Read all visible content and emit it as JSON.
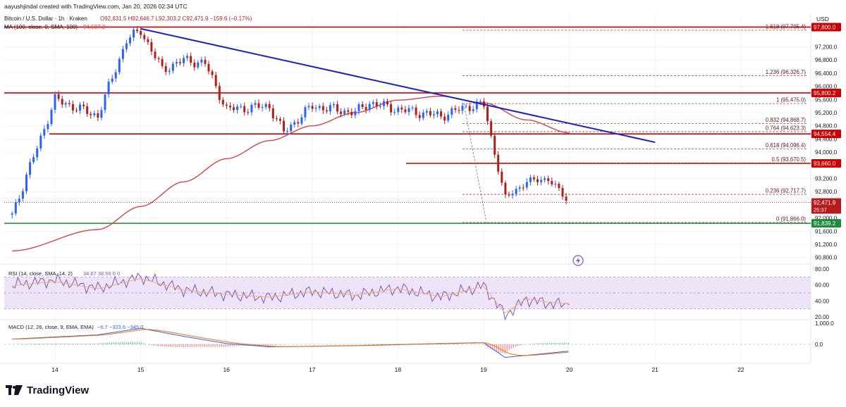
{
  "header": {
    "credit": "aayushjindal created with TradingView.com, Jan 20, 2026 02:34 UTC",
    "symbol_line": "Bitcoin / U.S. Dollar · 1h · Kraken",
    "ohlc": "O92,631.5  H92,646.7  L92,303.2  C92,471.9  −159.6 (−0.17%)",
    "ma_label": "MA (100, close, 0, SMA, 100)",
    "ma_value": "94,587.2",
    "currency": "USD"
  },
  "colors": {
    "up": "#2962ff",
    "down": "#b71c1c",
    "resistance": "#cc0000",
    "support": "#1b8a3a",
    "trendline": "#1a1fc7",
    "ma": "#d64545",
    "fib": "#8c1b1b",
    "rsi_band": "#ede4f7",
    "rsi_line": "#7e57c2",
    "macd": "#2962ff",
    "signal": "#ff6d00"
  },
  "chart_data": [
    {
      "type": "line",
      "subtype": "candlestick",
      "title": "Bitcoin / U.S. Dollar · 1h · Kraken",
      "ylabel": "USD",
      "ylim": [
        90600,
        98000
      ],
      "x_ticks": [
        "14",
        "15",
        "16",
        "17",
        "18",
        "19",
        "20",
        "21",
        "22"
      ],
      "y_ticks": [
        "97,200.0",
        "96,800.0",
        "96,400.0",
        "96,000.0",
        "95,600.0",
        "95,200.0",
        "94,800.0",
        "94,400.0",
        "94,000.0",
        "93,200.0",
        "92,800.0",
        "92,000.0",
        "91,600.0",
        "91,200.0",
        "90,800.0"
      ],
      "series": [
        {
          "name": "Bitcoin / U.S. Dollar · 1h · Kraken",
          "x": [
            "Jan 13 12:00",
            "Jan 14 00:00",
            "Jan 14 12:00",
            "Jan 14 20:00",
            "Jan 15 00:00",
            "Jan 15 06:00",
            "Jan 15 12:00",
            "Jan 15 18:00",
            "Jan 16 00:00",
            "Jan 16 12:00",
            "Jan 16 16:00",
            "Jan 17 00:00",
            "Jan 17 12:00",
            "Jan 17 16:00",
            "Jan 18 00:00",
            "Jan 18 12:00",
            "Jan 18 20:00",
            "Jan 19 00:00",
            "Jan 19 06:00",
            "Jan 19 12:00",
            "Jan 19 18:00",
            "Jan 20 00:00"
          ],
          "y": [
            92100,
            95600,
            95100,
            97400,
            97700,
            96500,
            96800,
            96700,
            95300,
            95400,
            94600,
            95400,
            95200,
            95500,
            95300,
            95100,
            95400,
            95450,
            92600,
            93100,
            93200,
            92472
          ]
        },
        {
          "name": "MA (100, close, 0, SMA, 100)",
          "x": [
            "Jan 13 12:00",
            "Jan 14 12:00",
            "Jan 15 00:00",
            "Jan 15 12:00",
            "Jan 16 00:00",
            "Jan 16 12:00",
            "Jan 17 00:00",
            "Jan 17 12:00",
            "Jan 18 00:00",
            "Jan 18 12:00",
            "Jan 19 00:00",
            "Jan 19 12:00",
            "Jan 20 00:00"
          ],
          "y": [
            91000,
            91650,
            92350,
            93100,
            93800,
            94350,
            94800,
            95200,
            95580,
            95700,
            95500,
            94980,
            94587
          ]
        }
      ],
      "horizontal_levels": [
        {
          "label": "97,800.0",
          "value": 97800
        },
        {
          "label": "95,800.2",
          "value": 95800.2
        },
        {
          "label": "94,554.4",
          "value": 94554.4
        },
        {
          "label": "93,660.0",
          "value": 93660
        },
        {
          "label": "91,839.2",
          "value": 91839.2
        }
      ],
      "trendline": {
        "from": [
          "Jan 15 00:00",
          97750
        ],
        "to": [
          "Jan 21 00:00",
          94300
        ]
      },
      "fibonacci": [
        {
          "label": "1.618 (97,705.4)",
          "value": 97705.4
        },
        {
          "label": "1.236 (96,326.7)",
          "value": 96326.7
        },
        {
          "label": "1 (95,475.0)",
          "value": 95475
        },
        {
          "label": "0.832 (94,868.7)",
          "value": 94868.7
        },
        {
          "label": "0.764 (94,623.3)",
          "value": 94623.3
        },
        {
          "label": "0.618 (94,096.4)",
          "value": 94096.4
        },
        {
          "label": "0.5 (93,670.5)",
          "value": 93670.5
        },
        {
          "label": "0.236 (92,717.7)",
          "value": 92717.7
        },
        {
          "label": "0 (91,866.0)",
          "value": 91866
        }
      ],
      "last_price": "92,471.9",
      "countdown": "25:37"
    },
    {
      "type": "line",
      "title": "RSI (14, close, SMA, 14, 2)",
      "values_text": "34.67  38.56  0  0",
      "ylim": [
        10,
        90
      ],
      "y_ticks": [
        "80.00",
        "60.00",
        "40.00",
        "20.00"
      ],
      "band": [
        30,
        70
      ],
      "series": [
        {
          "name": "RSI",
          "x": [
            "Jan 13 12:00",
            "Jan 14 00:00",
            "Jan 14 12:00",
            "Jan 15 00:00",
            "Jan 15 12:00",
            "Jan 16 00:00",
            "Jan 16 12:00",
            "Jan 17 00:00",
            "Jan 17 12:00",
            "Jan 18 00:00",
            "Jan 18 12:00",
            "Jan 19 00:00",
            "Jan 19 06:00",
            "Jan 19 12:00",
            "Jan 19 18:00",
            "Jan 20 00:00"
          ],
          "y": [
            60,
            66,
            56,
            70,
            54,
            48,
            44,
            52,
            47,
            56,
            45,
            59,
            22,
            42,
            37,
            35
          ]
        }
      ]
    },
    {
      "type": "line",
      "title": "MACD (12, 26, close, 9, EMA, EMA)",
      "values_text": "−6.7  −323.6  −345.0",
      "ylim": [
        -1000,
        1000
      ],
      "y_ticks": [
        "1,000.0",
        "0.0"
      ],
      "series": [
        {
          "name": "MACD",
          "x": [
            "Jan 13 12:00",
            "Jan 14 12:00",
            "Jan 15 00:00",
            "Jan 15 12:00",
            "Jan 16 00:00",
            "Jan 16 12:00",
            "Jan 17 12:00",
            "Jan 18 12:00",
            "Jan 19 00:00",
            "Jan 19 06:00",
            "Jan 19 12:00",
            "Jan 20 00:00"
          ],
          "y": [
            250,
            450,
            760,
            380,
            40,
            -120,
            -60,
            40,
            80,
            -620,
            -520,
            -320
          ]
        }
      ]
    }
  ],
  "footer": {
    "brand": "TradingView"
  }
}
